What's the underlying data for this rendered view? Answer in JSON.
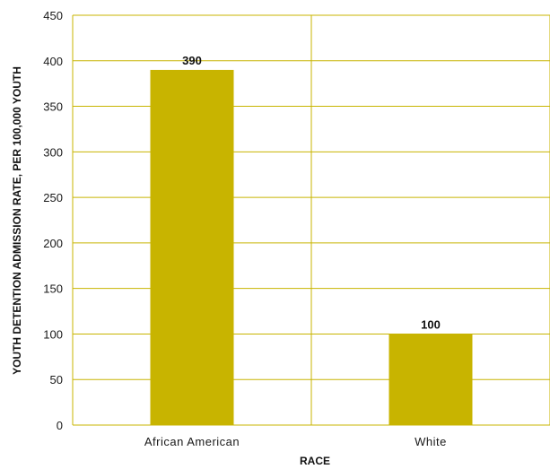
{
  "colors": {
    "bar": "#c8b400",
    "grid": "#c8b400",
    "text": "#1a1a1a"
  },
  "chart_data": {
    "type": "bar",
    "categories": [
      "African American",
      "White"
    ],
    "values": [
      390,
      100
    ],
    "data_labels": [
      "390",
      "100"
    ],
    "title": "",
    "xlabel": "RACE",
    "ylabel": "YOUTH DETENTION ADMISSION RATE, PER 100,000 YOUTH",
    "ylim": [
      0,
      450
    ],
    "yticks": [
      0,
      50,
      100,
      150,
      200,
      250,
      300,
      350,
      400,
      450
    ],
    "grid": true,
    "legend": "none"
  }
}
